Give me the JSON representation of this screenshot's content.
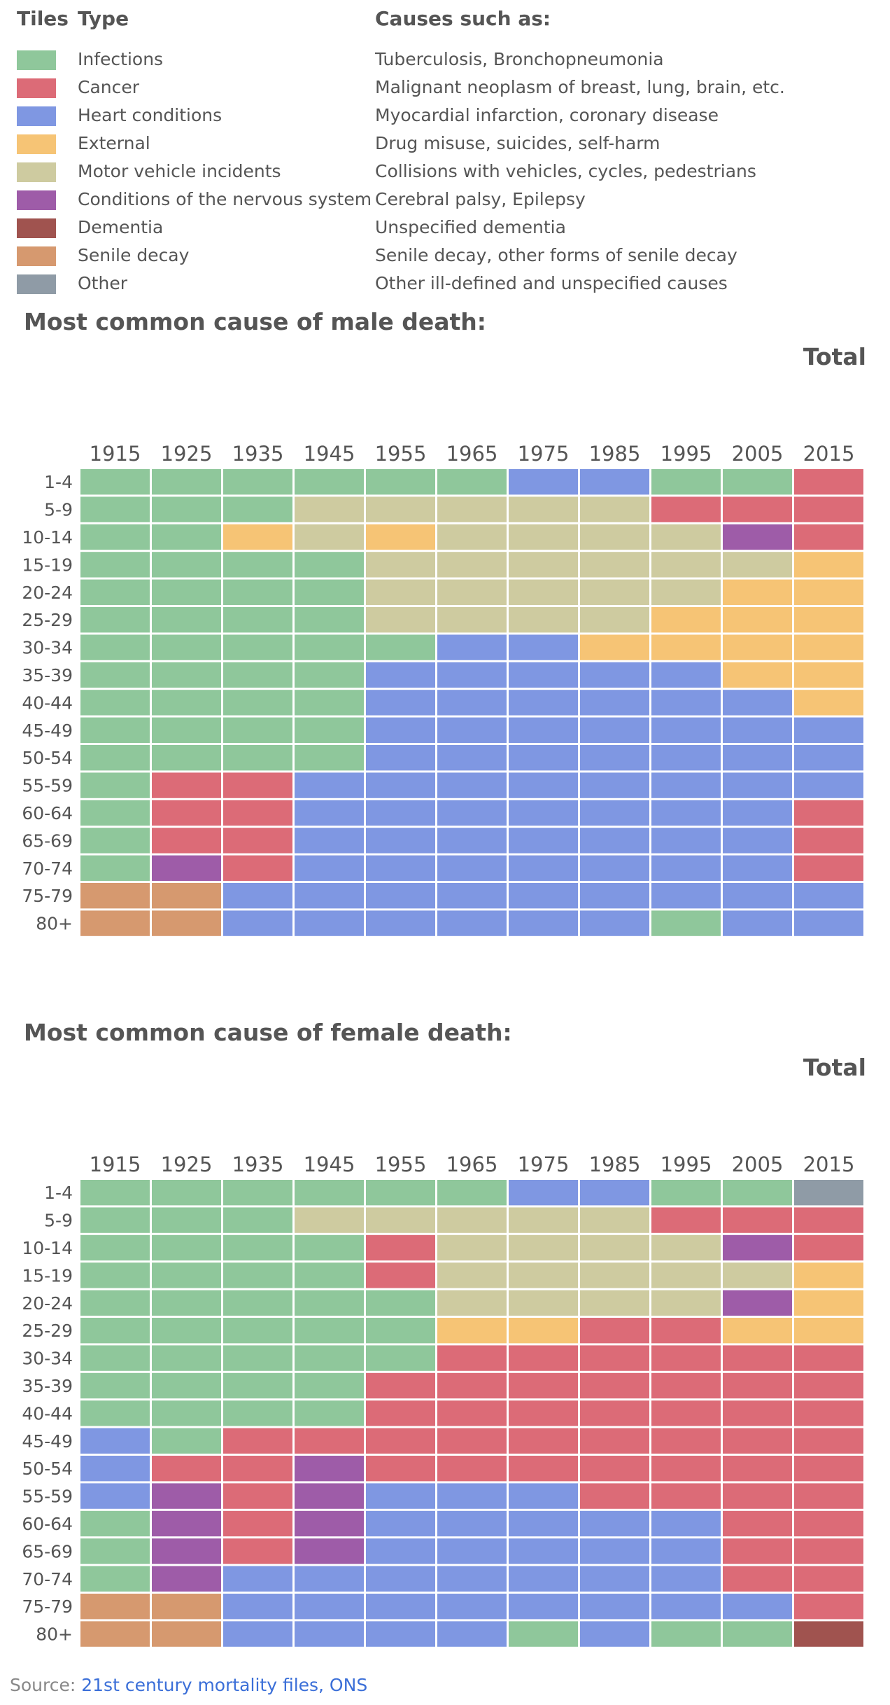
{
  "legend": {
    "header_tiles": "Tiles",
    "header_type": "Type",
    "header_causes": "Causes such as:",
    "items": [
      {
        "key": "I",
        "type": "Infections",
        "causes": "Tuberculosis, Bronchopneumonia",
        "color": "#8fc79b"
      },
      {
        "key": "C",
        "type": "Cancer",
        "causes": "Malignant neoplasm of breast, lung, brain, etc.",
        "color": "#dc6b77"
      },
      {
        "key": "H",
        "type": "Heart conditions",
        "causes": "Myocardial infarction, coronary disease",
        "color": "#7f97e2"
      },
      {
        "key": "E",
        "type": "External",
        "causes": "Drug misuse, suicides, self-harm",
        "color": "#f6c475"
      },
      {
        "key": "M",
        "type": "Motor vehicle incidents",
        "causes": "Collisions with vehicles, cycles, pedestrians",
        "color": "#cecba0"
      },
      {
        "key": "N",
        "type": "Conditions of the nervous system",
        "causes": "Cerebral palsy, Epilepsy",
        "color": "#9e5ca8"
      },
      {
        "key": "D",
        "type": "Dementia",
        "causes": "Unspecified dementia",
        "color": "#a0534f"
      },
      {
        "key": "S",
        "type": "Senile decay",
        "causes": "Senile decay, other forms of senile decay",
        "color": "#d6996f"
      },
      {
        "key": "O",
        "type": "Other",
        "causes": "Other ill-defined and unspecified causes",
        "color": "#8f9ba6"
      }
    ]
  },
  "chart_data": [
    {
      "type": "heatmap",
      "title": "Most common cause of male death:",
      "subtitle": "Total",
      "x": [
        "1915",
        "1925",
        "1935",
        "1945",
        "1955",
        "1965",
        "1975",
        "1985",
        "1995",
        "2005",
        "2015"
      ],
      "y": [
        "1-4",
        "5-9",
        "10-14",
        "15-19",
        "20-24",
        "25-29",
        "30-34",
        "35-39",
        "40-44",
        "45-49",
        "50-54",
        "55-59",
        "60-64",
        "65-69",
        "70-74",
        "75-79",
        "80+"
      ],
      "cells": [
        [
          "I",
          "I",
          "I",
          "I",
          "I",
          "I",
          "H",
          "H",
          "I",
          "I",
          "C"
        ],
        [
          "I",
          "I",
          "I",
          "M",
          "M",
          "M",
          "M",
          "M",
          "C",
          "C",
          "C"
        ],
        [
          "I",
          "I",
          "E",
          "M",
          "E",
          "M",
          "M",
          "M",
          "M",
          "N",
          "C"
        ],
        [
          "I",
          "I",
          "I",
          "I",
          "M",
          "M",
          "M",
          "M",
          "M",
          "M",
          "E"
        ],
        [
          "I",
          "I",
          "I",
          "I",
          "M",
          "M",
          "M",
          "M",
          "M",
          "E",
          "E"
        ],
        [
          "I",
          "I",
          "I",
          "I",
          "M",
          "M",
          "M",
          "M",
          "E",
          "E",
          "E"
        ],
        [
          "I",
          "I",
          "I",
          "I",
          "I",
          "H",
          "H",
          "E",
          "E",
          "E",
          "E"
        ],
        [
          "I",
          "I",
          "I",
          "I",
          "H",
          "H",
          "H",
          "H",
          "H",
          "E",
          "E"
        ],
        [
          "I",
          "I",
          "I",
          "I",
          "H",
          "H",
          "H",
          "H",
          "H",
          "H",
          "E"
        ],
        [
          "I",
          "I",
          "I",
          "I",
          "H",
          "H",
          "H",
          "H",
          "H",
          "H",
          "H"
        ],
        [
          "I",
          "I",
          "I",
          "I",
          "H",
          "H",
          "H",
          "H",
          "H",
          "H",
          "H"
        ],
        [
          "I",
          "C",
          "C",
          "H",
          "H",
          "H",
          "H",
          "H",
          "H",
          "H",
          "H"
        ],
        [
          "I",
          "C",
          "C",
          "H",
          "H",
          "H",
          "H",
          "H",
          "H",
          "H",
          "C"
        ],
        [
          "I",
          "C",
          "C",
          "H",
          "H",
          "H",
          "H",
          "H",
          "H",
          "H",
          "C"
        ],
        [
          "I",
          "N",
          "C",
          "H",
          "H",
          "H",
          "H",
          "H",
          "H",
          "H",
          "C"
        ],
        [
          "S",
          "S",
          "H",
          "H",
          "H",
          "H",
          "H",
          "H",
          "H",
          "H",
          "H"
        ],
        [
          "S",
          "S",
          "H",
          "H",
          "H",
          "H",
          "H",
          "H",
          "I",
          "H",
          "H"
        ]
      ]
    },
    {
      "type": "heatmap",
      "title": "Most common cause of female death:",
      "subtitle": "Total",
      "x": [
        "1915",
        "1925",
        "1935",
        "1945",
        "1955",
        "1965",
        "1975",
        "1985",
        "1995",
        "2005",
        "2015"
      ],
      "y": [
        "1-4",
        "5-9",
        "10-14",
        "15-19",
        "20-24",
        "25-29",
        "30-34",
        "35-39",
        "40-44",
        "45-49",
        "50-54",
        "55-59",
        "60-64",
        "65-69",
        "70-74",
        "75-79",
        "80+"
      ],
      "cells": [
        [
          "I",
          "I",
          "I",
          "I",
          "I",
          "I",
          "H",
          "H",
          "I",
          "I",
          "O"
        ],
        [
          "I",
          "I",
          "I",
          "M",
          "M",
          "M",
          "M",
          "M",
          "C",
          "C",
          "C"
        ],
        [
          "I",
          "I",
          "I",
          "I",
          "C",
          "M",
          "M",
          "M",
          "M",
          "N",
          "C"
        ],
        [
          "I",
          "I",
          "I",
          "I",
          "C",
          "M",
          "M",
          "M",
          "M",
          "M",
          "E"
        ],
        [
          "I",
          "I",
          "I",
          "I",
          "I",
          "M",
          "M",
          "M",
          "M",
          "N",
          "E"
        ],
        [
          "I",
          "I",
          "I",
          "I",
          "I",
          "E",
          "E",
          "C",
          "C",
          "E",
          "E"
        ],
        [
          "I",
          "I",
          "I",
          "I",
          "I",
          "C",
          "C",
          "C",
          "C",
          "C",
          "C"
        ],
        [
          "I",
          "I",
          "I",
          "I",
          "C",
          "C",
          "C",
          "C",
          "C",
          "C",
          "C"
        ],
        [
          "I",
          "I",
          "I",
          "I",
          "C",
          "C",
          "C",
          "C",
          "C",
          "C",
          "C"
        ],
        [
          "H",
          "I",
          "C",
          "C",
          "C",
          "C",
          "C",
          "C",
          "C",
          "C",
          "C"
        ],
        [
          "H",
          "C",
          "C",
          "N",
          "C",
          "C",
          "C",
          "C",
          "C",
          "C",
          "C"
        ],
        [
          "H",
          "N",
          "C",
          "N",
          "H",
          "H",
          "H",
          "C",
          "C",
          "C",
          "C"
        ],
        [
          "I",
          "N",
          "C",
          "N",
          "H",
          "H",
          "H",
          "H",
          "H",
          "C",
          "C"
        ],
        [
          "I",
          "N",
          "C",
          "N",
          "H",
          "H",
          "H",
          "H",
          "H",
          "C",
          "C"
        ],
        [
          "I",
          "N",
          "H",
          "H",
          "H",
          "H",
          "H",
          "H",
          "H",
          "C",
          "C"
        ],
        [
          "S",
          "S",
          "H",
          "H",
          "H",
          "H",
          "H",
          "H",
          "H",
          "H",
          "C"
        ],
        [
          "S",
          "S",
          "H",
          "H",
          "H",
          "H",
          "I",
          "H",
          "I",
          "I",
          "D"
        ]
      ]
    }
  ],
  "source": {
    "prefix": "Source: ",
    "link_text": "21st century mortality files, ONS"
  }
}
